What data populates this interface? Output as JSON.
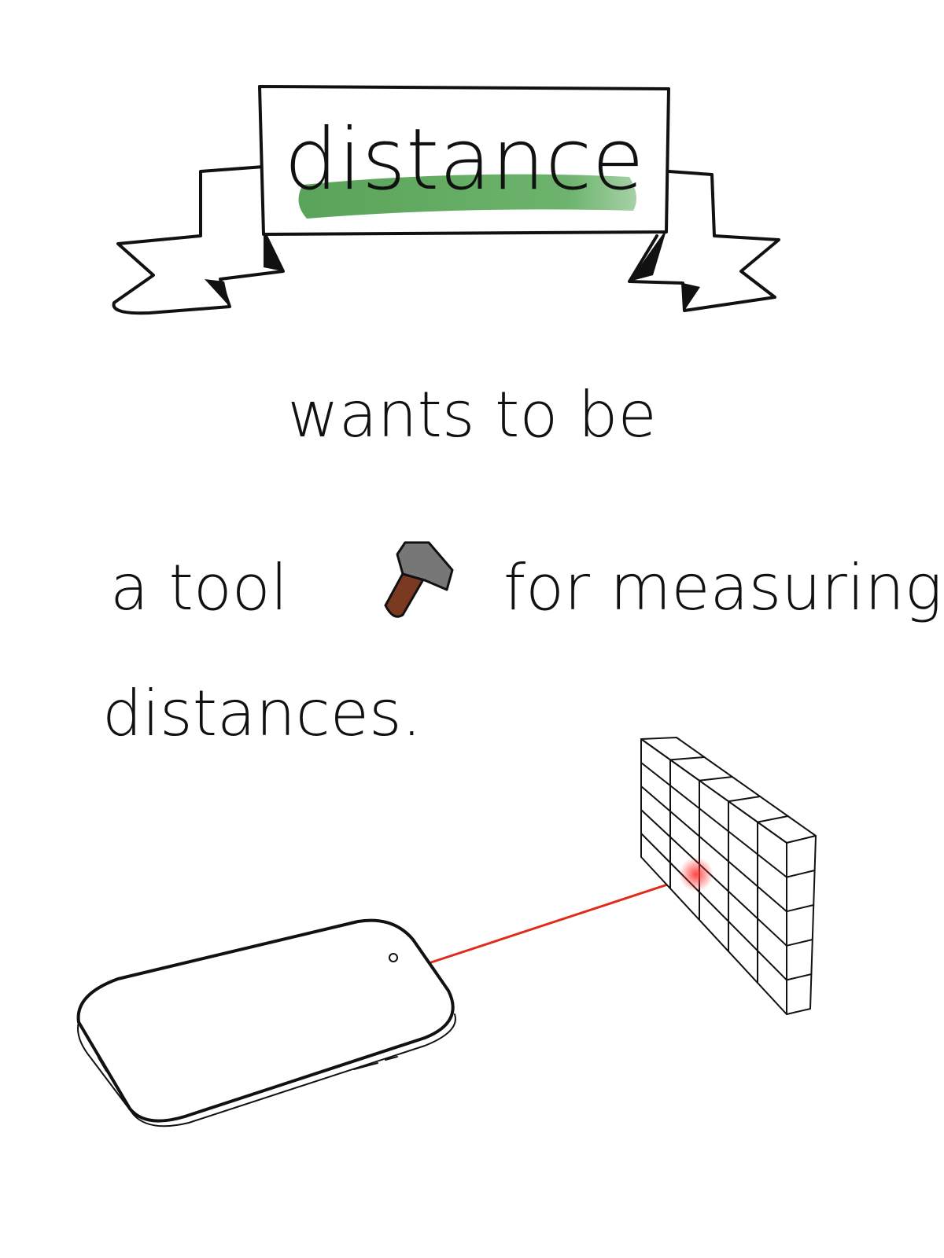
{
  "banner": {
    "title": "distance"
  },
  "lines": [
    "wants to be",
    "a tool",
    "for measuring",
    "distances."
  ]
}
